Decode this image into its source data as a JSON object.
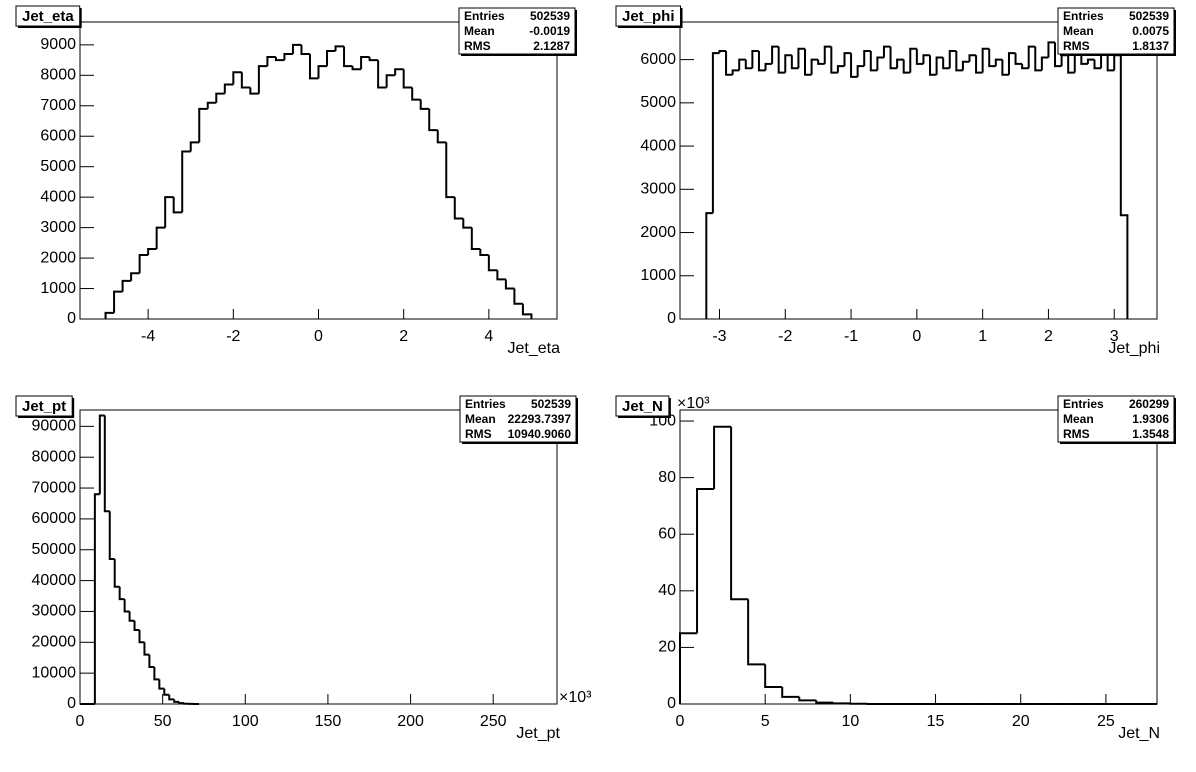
{
  "chart_data": [
    {
      "type": "histogram",
      "title": "Jet_eta",
      "x_label": "Jet_eta",
      "color": "#000000",
      "bins": [
        -5,
        -4.8,
        -4.6,
        -4.4,
        -4.2,
        -4,
        -3.8,
        -3.6,
        -3.4,
        -3.2,
        -3,
        -2.8,
        -2.6,
        -2.4,
        -2.2,
        -2,
        -1.8,
        -1.6,
        -1.4,
        -1.2,
        -1,
        -0.8,
        -0.6,
        -0.4,
        -0.2,
        0,
        0.2,
        0.4,
        0.6,
        0.8,
        1,
        1.2,
        1.4,
        1.6,
        1.8,
        2,
        2.2,
        2.4,
        2.6,
        2.8,
        3,
        3.2,
        3.4,
        3.6,
        3.8,
        4,
        4.2,
        4.4,
        4.6,
        4.8,
        5
      ],
      "values": [
        200,
        900,
        1250,
        1500,
        2100,
        2300,
        3000,
        4000,
        3500,
        5500,
        5800,
        6900,
        7100,
        7400,
        7700,
        8100,
        7600,
        7400,
        8300,
        8600,
        8500,
        8700,
        9000,
        8700,
        7900,
        8300,
        8800,
        8950,
        8300,
        8200,
        8600,
        8500,
        7600,
        8000,
        8200,
        7600,
        7200,
        6900,
        6200,
        5800,
        4000,
        3300,
        3000,
        2300,
        2100,
        1600,
        1300,
        1000,
        500,
        150
      ],
      "xlim": [
        -5.6,
        5.6
      ],
      "ylim": [
        0,
        9750
      ],
      "xticks": [
        -4,
        -2,
        0,
        2,
        4
      ],
      "yticks": [
        0,
        1000,
        2000,
        3000,
        4000,
        5000,
        6000,
        7000,
        8000,
        9000
      ],
      "stats": [
        {
          "name": "Entries",
          "value": "502539"
        },
        {
          "name": "Mean",
          "value": "-0.0019"
        },
        {
          "name": "RMS",
          "value": "2.1287"
        }
      ]
    },
    {
      "type": "histogram",
      "title": "Jet_phi",
      "x_label": "Jet_phi",
      "color": "#000000",
      "bins": [
        -3.2,
        -3.1,
        -3,
        -2.9,
        -2.8,
        -2.7,
        -2.6,
        -2.5,
        -2.4,
        -2.3,
        -2.2,
        -2.1,
        -2,
        -1.9,
        -1.8,
        -1.7,
        -1.6,
        -1.5,
        -1.4,
        -1.3,
        -1.2,
        -1.1,
        -1,
        -0.9,
        -0.8,
        -0.7,
        -0.6,
        -0.5,
        -0.4,
        -0.3,
        -0.2,
        -0.1,
        0,
        0.1,
        0.2,
        0.3,
        0.4,
        0.5,
        0.6,
        0.7,
        0.8,
        0.9,
        1,
        1.1,
        1.2,
        1.3,
        1.4,
        1.5,
        1.6,
        1.7,
        1.8,
        1.9,
        2,
        2.1,
        2.2,
        2.3,
        2.4,
        2.5,
        2.6,
        2.7,
        2.8,
        2.9,
        3,
        3.1,
        3.2
      ],
      "values": [
        2450,
        6150,
        6200,
        5650,
        5750,
        6000,
        5800,
        6200,
        5750,
        5900,
        6300,
        5700,
        6100,
        5800,
        6250,
        5650,
        6000,
        5900,
        6300,
        5700,
        5850,
        6150,
        5600,
        5850,
        6200,
        5750,
        6050,
        6300,
        5800,
        6000,
        5700,
        6250,
        5900,
        6100,
        5650,
        6050,
        5800,
        6200,
        5750,
        5950,
        6100,
        5700,
        6250,
        5850,
        6000,
        5650,
        6150,
        5900,
        5800,
        6300,
        5750,
        6050,
        6400,
        5850,
        6100,
        5700,
        6300,
        5900,
        6000,
        5800,
        6200,
        5750,
        6100,
        2400
      ],
      "xlim": [
        -3.6,
        3.65
      ],
      "ylim": [
        0,
        6870
      ],
      "xticks": [
        -3,
        -2,
        -1,
        0,
        1,
        2,
        3
      ],
      "yticks": [
        0,
        1000,
        2000,
        3000,
        4000,
        5000,
        6000
      ],
      "stats": [
        {
          "name": "Entries",
          "value": "502539"
        },
        {
          "name": "Mean",
          "value": "0.0075"
        },
        {
          "name": "RMS",
          "value": "1.8137"
        }
      ]
    },
    {
      "type": "histogram",
      "title": "Jet_pt",
      "x_label": "Jet_pt",
      "x_multiplier": "×10³",
      "color": "#000000",
      "bins": [
        0,
        3,
        6,
        9,
        12,
        15,
        18,
        21,
        24,
        27,
        30,
        33,
        36,
        39,
        42,
        45,
        48,
        51,
        54,
        57,
        60,
        63,
        66,
        69,
        72
      ],
      "values": [
        0,
        0,
        0,
        68000,
        93500,
        62500,
        47000,
        38000,
        34000,
        30000,
        27000,
        24000,
        20000,
        16000,
        12000,
        8000,
        5000,
        3000,
        1500,
        700,
        300,
        100,
        50,
        0
      ],
      "xlim": [
        0,
        288.6
      ],
      "ylim": [
        0,
        95300
      ],
      "xticks": [
        0,
        50,
        100,
        150,
        200,
        250
      ],
      "yticks": [
        0,
        10000,
        20000,
        30000,
        40000,
        50000,
        60000,
        70000,
        80000,
        90000
      ],
      "stats": [
        {
          "name": "Entries",
          "value": "502539"
        },
        {
          "name": "Mean",
          "value": "22293.7397"
        },
        {
          "name": "RMS",
          "value": "10940.9060"
        }
      ]
    },
    {
      "type": "histogram",
      "title": "Jet_N",
      "x_label": "Jet_N",
      "y_multiplier": "×10³",
      "color": "#000000",
      "bins": [
        0,
        1,
        2,
        3,
        4,
        5,
        6,
        7,
        8,
        9,
        10,
        11,
        12,
        13,
        14,
        15,
        16,
        17,
        18,
        19,
        20,
        21,
        22,
        23,
        24,
        25,
        26,
        27,
        28
      ],
      "values": [
        25,
        76,
        98,
        37,
        14,
        6,
        2.5,
        1.3,
        0.5,
        0.2,
        0.1,
        0,
        0,
        0,
        0,
        0,
        0,
        0,
        0,
        0,
        0,
        0,
        0,
        0,
        0,
        0,
        0,
        0
      ],
      "xlim": [
        0,
        28
      ],
      "ylim": [
        0,
        103.9
      ],
      "xticks": [
        0,
        5,
        10,
        15,
        20,
        25
      ],
      "yticks": [
        0,
        20,
        40,
        60,
        80,
        100
      ],
      "stats": [
        {
          "name": "Entries",
          "value": "260299"
        },
        {
          "name": "Mean",
          "value": "1.9306"
        },
        {
          "name": "RMS",
          "value": "1.3548"
        }
      ]
    }
  ]
}
